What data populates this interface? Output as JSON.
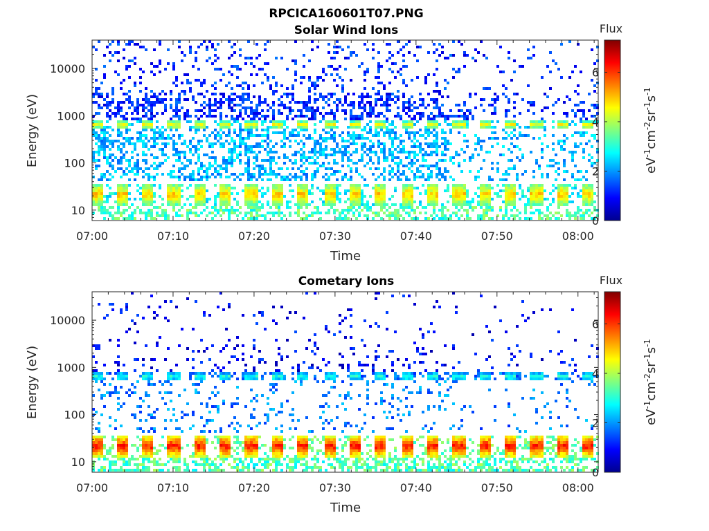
{
  "figure_title": "RPCICA160601T07.PNG",
  "chart_data": [
    {
      "type": "heatmap",
      "title": "Solar Wind Ions",
      "xlabel": "Time",
      "ylabel": "Energy (eV)",
      "xticks": [
        "07:00",
        "07:10",
        "07:20",
        "07:30",
        "07:40",
        "07:50",
        "08:00"
      ],
      "xlim_minutes": [
        0,
        62.5
      ],
      "yscale": "log",
      "ylim": [
        6,
        40000
      ],
      "yticks": [
        10,
        100,
        1000,
        10000
      ],
      "yticklabels": [
        "10",
        "100",
        "1000",
        "10000"
      ],
      "colorbar": {
        "label_top": "Flux",
        "unit_label": "eV-1cm-2sr-1s-1",
        "range": [
          0,
          7.3
        ],
        "ticks": [
          0,
          2,
          4,
          6
        ],
        "ticklabels": [
          "0",
          "2",
          "4",
          "6"
        ]
      },
      "pulse_period_min": 3.2,
      "bands": [
        {
          "energy_range": [
            12,
            38
          ],
          "level": 5.0,
          "pulsed": true
        },
        {
          "energy_range": [
            520,
            780
          ],
          "level": 4.6,
          "pulsed": true
        },
        {
          "energy_range": [
            40,
            500
          ],
          "level": 2.2,
          "pulsed": false
        },
        {
          "energy_range": [
            800,
            40000
          ],
          "level": 1.2,
          "pulsed": false
        }
      ]
    },
    {
      "type": "heatmap",
      "title": "Cometary Ions",
      "xlabel": "Time",
      "ylabel": "Energy (eV)",
      "xticks": [
        "07:00",
        "07:10",
        "07:20",
        "07:30",
        "07:40",
        "07:50",
        "08:00"
      ],
      "xlim_minutes": [
        0,
        62.5
      ],
      "yscale": "log",
      "ylim": [
        6,
        40000
      ],
      "yticks": [
        10,
        100,
        1000,
        10000
      ],
      "yticklabels": [
        "10",
        "100",
        "1000",
        "10000"
      ],
      "colorbar": {
        "label_top": "Flux",
        "unit_label": "eV-1cm-2sr-1s-1",
        "range": [
          0,
          7.3
        ],
        "ticks": [
          0,
          2,
          4,
          6
        ],
        "ticklabels": [
          "0",
          "2",
          "4",
          "6"
        ]
      },
      "pulse_period_min": 3.2,
      "bands": [
        {
          "energy_range": [
            12,
            38
          ],
          "level": 6.3,
          "pulsed": true
        },
        {
          "energy_range": [
            520,
            780
          ],
          "level": 3.0,
          "pulsed": true
        },
        {
          "energy_range": [
            40,
            500
          ],
          "level": 1.8,
          "pulsed": false
        },
        {
          "energy_range": [
            800,
            40000
          ],
          "level": 0.9,
          "pulsed": false
        }
      ]
    }
  ]
}
